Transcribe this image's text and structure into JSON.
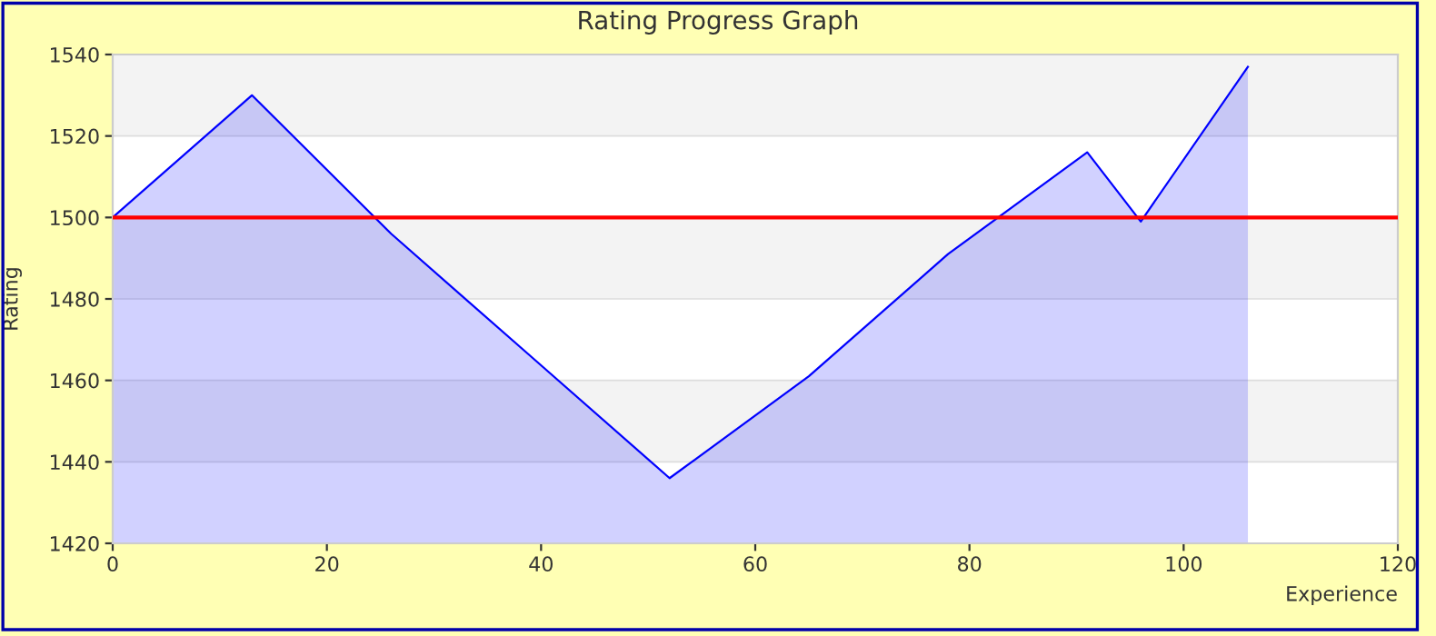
{
  "chart_data": {
    "type": "area",
    "title": "Rating Progress Graph",
    "xlabel": "Experience",
    "ylabel": "Rating",
    "x": [
      0,
      13,
      26,
      39,
      52,
      65,
      78,
      91,
      96,
      106
    ],
    "series": [
      {
        "color": "#0000ff",
        "values": [
          1500,
          1530,
          1496,
          1466,
          1436,
          1461,
          1491,
          1516,
          1499,
          1537
        ]
      }
    ],
    "xlim": [
      0,
      120
    ],
    "xticks": [
      0,
      20,
      40,
      60,
      80,
      100,
      120
    ],
    "ylim": [
      1420,
      1540
    ],
    "yticks": [
      1420,
      1440,
      1460,
      1480,
      1500,
      1520,
      1540
    ],
    "grid": "y",
    "ref_lines": [
      {
        "axis": "y",
        "value": 1500,
        "color": "#ff0000"
      }
    ]
  }
}
